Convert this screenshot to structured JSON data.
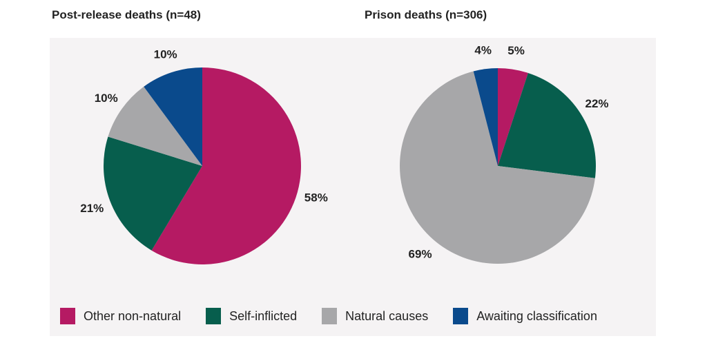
{
  "chart_data": [
    {
      "type": "pie",
      "title": "Post-release deaths (n=48)",
      "categories": [
        "Other non-natural",
        "Self-inflicted",
        "Natural causes",
        "Awaiting classification"
      ],
      "values": [
        58,
        21,
        10,
        10
      ],
      "labels": [
        "58%",
        "21%",
        "10%",
        "10%"
      ]
    },
    {
      "type": "pie",
      "title": "Prison deaths (n=306)",
      "categories": [
        "Other non-natural",
        "Self-inflicted",
        "Natural causes",
        "Awaiting classification"
      ],
      "values": [
        5,
        22,
        69,
        4
      ],
      "labels": [
        "5%",
        "22%",
        "69%",
        "4%"
      ]
    }
  ],
  "legend": {
    "placement": "bottom",
    "items": [
      {
        "label": "Other non-natural",
        "color": "#b51a63"
      },
      {
        "label": "Self-inflicted",
        "color": "#075e4d"
      },
      {
        "label": "Natural causes",
        "color": "#a7a7a9"
      },
      {
        "label": "Awaiting classification",
        "color": "#0a4a8c"
      }
    ]
  }
}
